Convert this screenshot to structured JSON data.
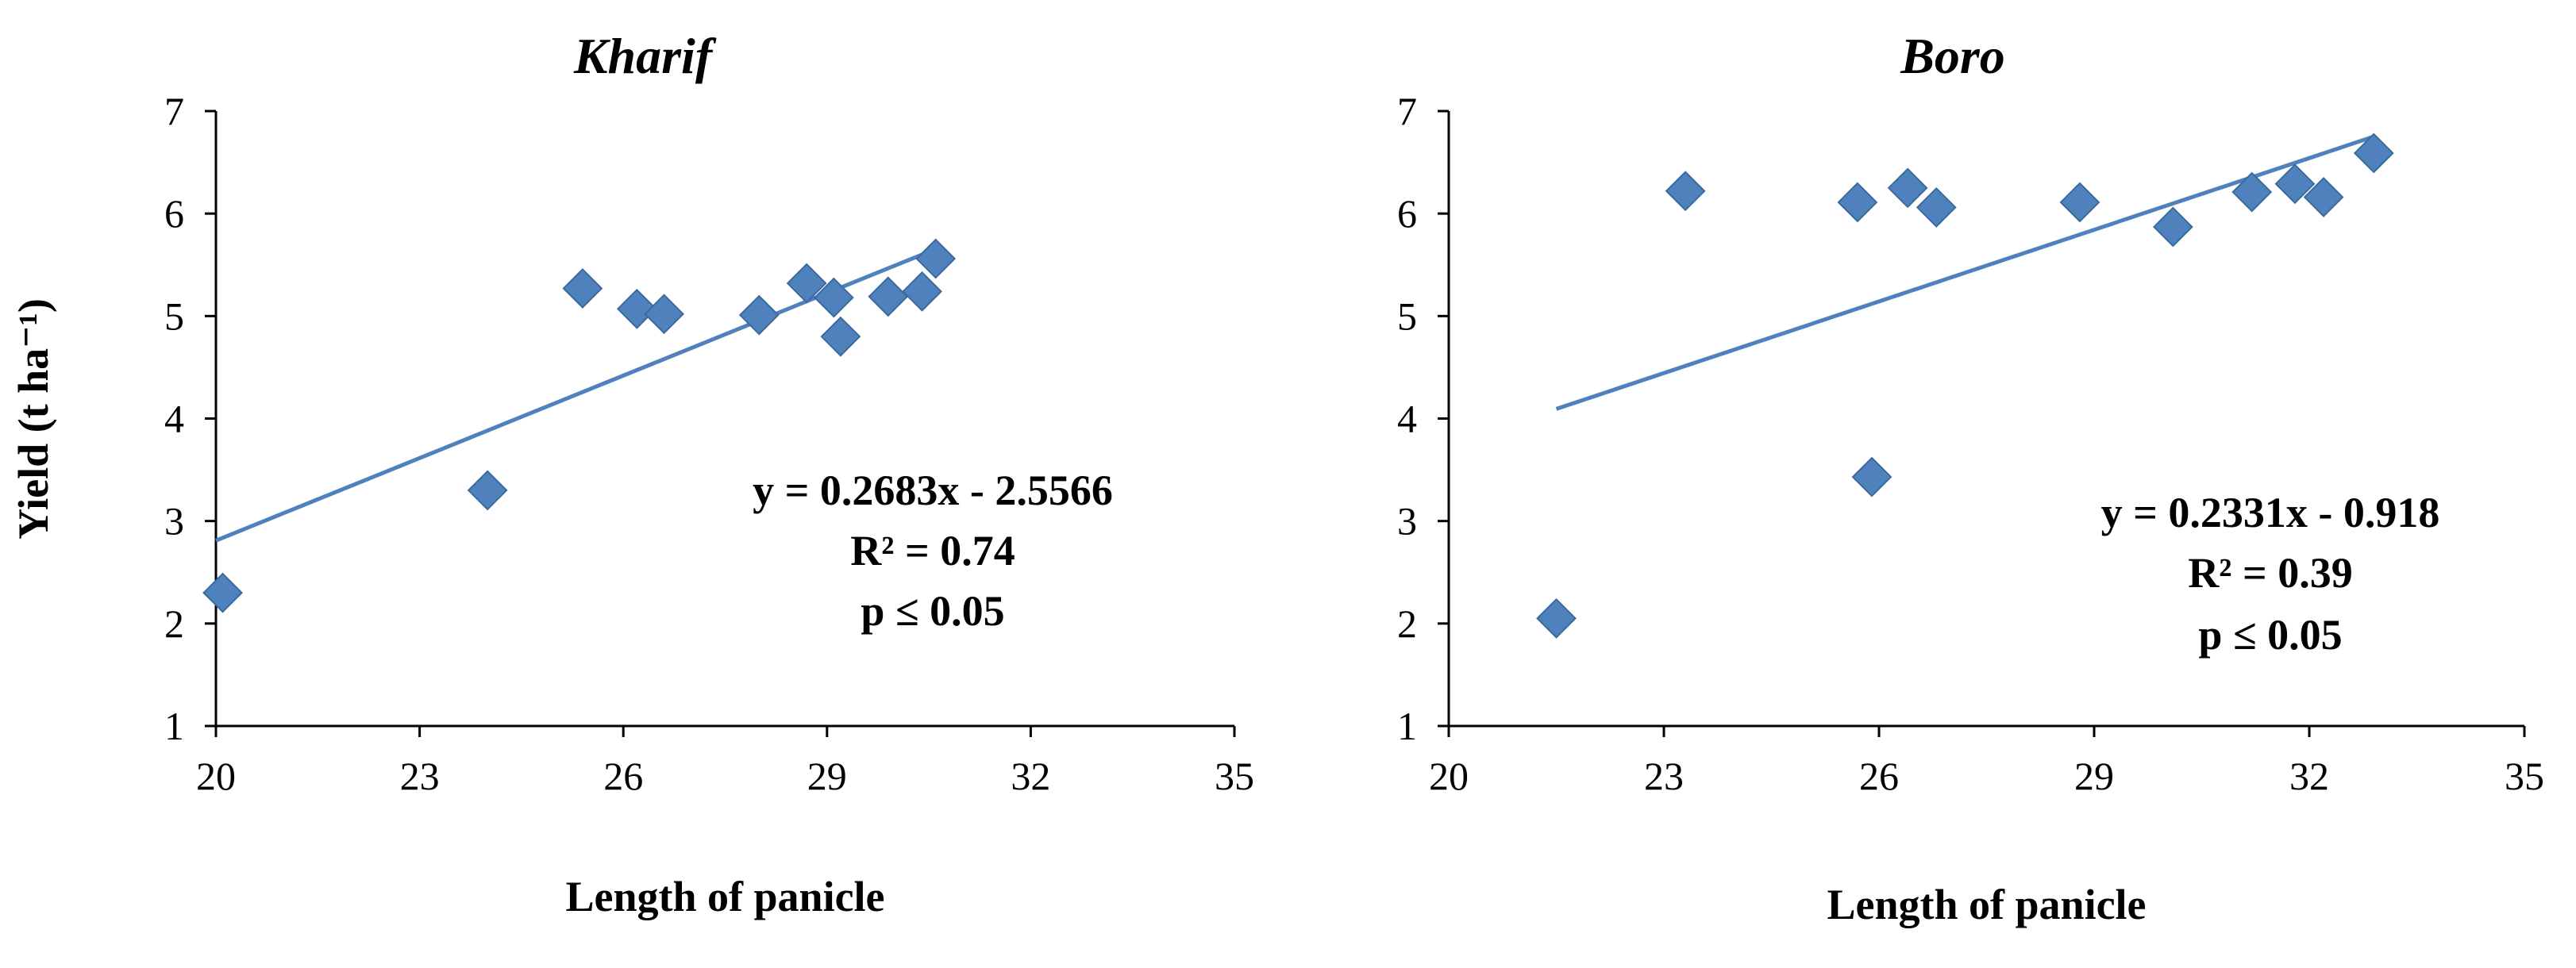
{
  "chart_data": [
    {
      "type": "scatter",
      "title": "Kharif",
      "xlabel": "Length of panicle",
      "ylabel": "Yield (t ha⁻¹)",
      "xlim": [
        20,
        35
      ],
      "ylim": [
        1,
        7
      ],
      "xticks": [
        "20",
        "23",
        "26",
        "29",
        "32",
        "35"
      ],
      "yticks": [
        "1",
        "2",
        "3",
        "4",
        "5",
        "6",
        "7"
      ],
      "grid": false,
      "marker": "diamond",
      "color": "#4f81bd",
      "series": [
        {
          "x": [
            20.1,
            24.0,
            25.4,
            26.2,
            26.6,
            28.0,
            28.7,
            29.1,
            29.2,
            29.9,
            30.4,
            30.6
          ],
          "y": [
            2.3,
            3.3,
            5.27,
            5.07,
            5.02,
            5.01,
            5.32,
            5.18,
            4.8,
            5.19,
            5.24,
            5.56
          ]
        }
      ],
      "trendline": {
        "slope": 0.2683,
        "intercept": -2.5566,
        "x_range": [
          20,
          30.6
        ]
      },
      "annotations": [
        "y = 0.2683x - 2.5566",
        "R² = 0.74",
        "p ≤ 0.05"
      ]
    },
    {
      "type": "scatter",
      "title": "Boro",
      "xlabel": "Length of panicle",
      "ylabel": "",
      "xlim": [
        20,
        35
      ],
      "ylim": [
        1,
        7
      ],
      "xticks": [
        "20",
        "23",
        "26",
        "29",
        "32",
        "35"
      ],
      "yticks": [
        "1",
        "2",
        "3",
        "4",
        "5",
        "6",
        "7"
      ],
      "grid": false,
      "marker": "diamond",
      "color": "#4f81bd",
      "series": [
        {
          "x": [
            21.5,
            23.3,
            25.7,
            25.9,
            26.4,
            26.8,
            28.8,
            30.1,
            31.2,
            31.8,
            32.2,
            32.9
          ],
          "y": [
            2.05,
            6.22,
            6.11,
            3.43,
            6.25,
            6.06,
            6.11,
            5.87,
            6.21,
            6.29,
            6.16,
            6.59
          ]
        }
      ],
      "trendline": {
        "slope": 0.2331,
        "intercept": -0.918,
        "x_range": [
          21.5,
          32.9
        ]
      },
      "annotations": [
        "y = 0.2331x - 0.918",
        "R² = 0.39",
        "p ≤ 0.05"
      ]
    }
  ]
}
